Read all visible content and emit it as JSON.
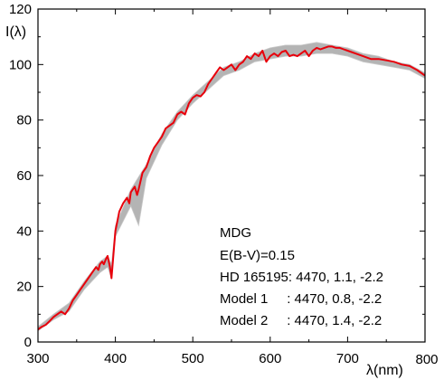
{
  "chart_data": {
    "type": "line",
    "title": "",
    "xlabel": "λ(nm)",
    "ylabel": "I(λ)",
    "xlim": [
      300,
      800
    ],
    "ylim": [
      0,
      120
    ],
    "x_ticks": [
      "300",
      "400",
      "500",
      "600",
      "700",
      "800"
    ],
    "y_ticks": [
      "0",
      "20",
      "40",
      "60",
      "80",
      "100",
      "120"
    ],
    "grid": false,
    "annotations": [
      "MDG",
      "E(B-V)=0.15",
      "HD 165195: 4470, 1.1, -2.2",
      "Model 1     : 4470, 0.8, -2.2",
      "Model 2     : 4470, 1.4, -2.2"
    ],
    "colors": {
      "observed": "#e8000b",
      "band": "#b4b4b4",
      "band_edge": "#c8c8c8"
    },
    "series": [
      {
        "role": "observed",
        "x": [
          300,
          305,
          310,
          315,
          320,
          325,
          330,
          335,
          340,
          345,
          350,
          355,
          360,
          365,
          370,
          375,
          378,
          380,
          383,
          385,
          388,
          390,
          393,
          395,
          400,
          405,
          410,
          415,
          418,
          420,
          425,
          428,
          430,
          435,
          440,
          445,
          450,
          455,
          460,
          465,
          470,
          475,
          480,
          485,
          490,
          495,
          500,
          505,
          510,
          515,
          520,
          525,
          530,
          535,
          540,
          545,
          550,
          555,
          560,
          565,
          570,
          575,
          580,
          585,
          590,
          595,
          600,
          605,
          610,
          615,
          620,
          625,
          630,
          635,
          640,
          645,
          650,
          655,
          660,
          665,
          670,
          675,
          680,
          685,
          690,
          695,
          700,
          710,
          720,
          730,
          740,
          750,
          760,
          770,
          780,
          790,
          800
        ],
        "y": [
          4.5,
          5.5,
          6.2,
          7.5,
          9,
          10,
          11,
          10,
          12,
          15,
          17,
          19,
          21,
          23,
          25,
          27,
          26,
          28,
          29,
          28,
          30,
          31,
          27,
          23,
          40,
          47,
          50,
          52,
          50,
          54,
          56,
          53,
          55,
          61,
          63,
          67,
          70,
          72,
          74,
          77,
          78,
          79,
          82,
          83,
          82,
          86,
          88,
          89,
          88.5,
          90,
          93,
          95,
          97,
          99,
          98,
          99,
          100,
          98,
          100,
          101,
          103,
          102,
          104,
          103,
          105,
          101,
          103,
          104,
          103,
          104.5,
          105,
          103,
          103.5,
          103,
          104,
          105,
          103,
          105,
          106,
          105.5,
          106,
          106.5,
          106.5,
          106,
          106,
          105.5,
          105,
          104,
          103,
          102,
          102,
          101.5,
          101,
          100,
          99.5,
          98,
          96
        ]
      },
      {
        "role": "band-upper",
        "x": [
          300,
          320,
          340,
          360,
          380,
          390,
          395,
          400,
          420,
          440,
          460,
          480,
          500,
          520,
          540,
          560,
          580,
          600,
          620,
          640,
          660,
          680,
          700,
          720,
          740,
          760,
          780,
          800
        ],
        "y": [
          5.5,
          10,
          14,
          22,
          29,
          31,
          28,
          42,
          55,
          64,
          75,
          83,
          89,
          94,
          99,
          101,
          104,
          106,
          107,
          107,
          108,
          107,
          106,
          104,
          103,
          101,
          100,
          97
        ]
      },
      {
        "role": "band-lower",
        "x": [
          300,
          320,
          340,
          360,
          380,
          390,
          395,
          400,
          420,
          430,
          440,
          460,
          480,
          500,
          520,
          540,
          560,
          580,
          600,
          620,
          640,
          660,
          680,
          700,
          720,
          740,
          760,
          780,
          800
        ],
        "y": [
          4,
          8,
          11,
          19,
          25,
          27,
          23,
          38,
          49,
          42,
          59,
          71,
          80,
          86,
          91,
          96,
          98,
          101,
          102,
          103,
          103,
          104,
          104,
          103,
          101,
          100,
          99,
          98,
          95
        ]
      }
    ]
  }
}
